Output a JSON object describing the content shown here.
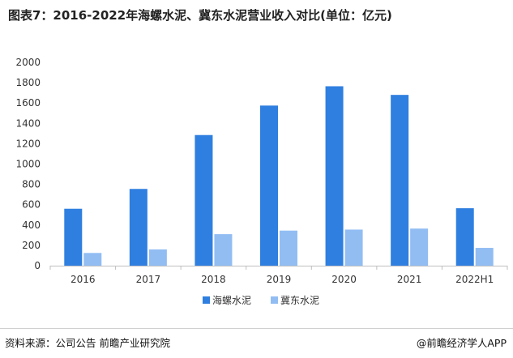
{
  "header": {
    "title": "图表7：2016-2022年海螺水泥、冀东水泥营业收入对比(单位：亿元)"
  },
  "footer": {
    "source": "资料来源：公司公告 前瞻产业研究院",
    "credit": "@前瞻经济学人APP"
  },
  "colors": {
    "series1": "#2f7fe0",
    "series2": "#92bdf3",
    "axis": "#bfbfbf"
  },
  "chart_data": {
    "type": "bar",
    "title": "图表7：2016-2022年海螺水泥、冀东水泥营业收入对比(单位：亿元)",
    "xlabel": "",
    "ylabel": "",
    "ylim": [
      0,
      2000
    ],
    "yticks": [
      0,
      200,
      400,
      600,
      800,
      1000,
      1200,
      1400,
      1600,
      1800,
      2000
    ],
    "categories": [
      "2016",
      "2017",
      "2018",
      "2019",
      "2020",
      "2021",
      "2022H1"
    ],
    "series": [
      {
        "name": "海螺水泥",
        "values": [
          560,
          755,
          1285,
          1575,
          1765,
          1680,
          565
        ]
      },
      {
        "name": "冀东水泥",
        "values": [
          125,
          160,
          310,
          345,
          355,
          365,
          175
        ]
      }
    ],
    "legend_position": "bottom",
    "grid": false
  }
}
